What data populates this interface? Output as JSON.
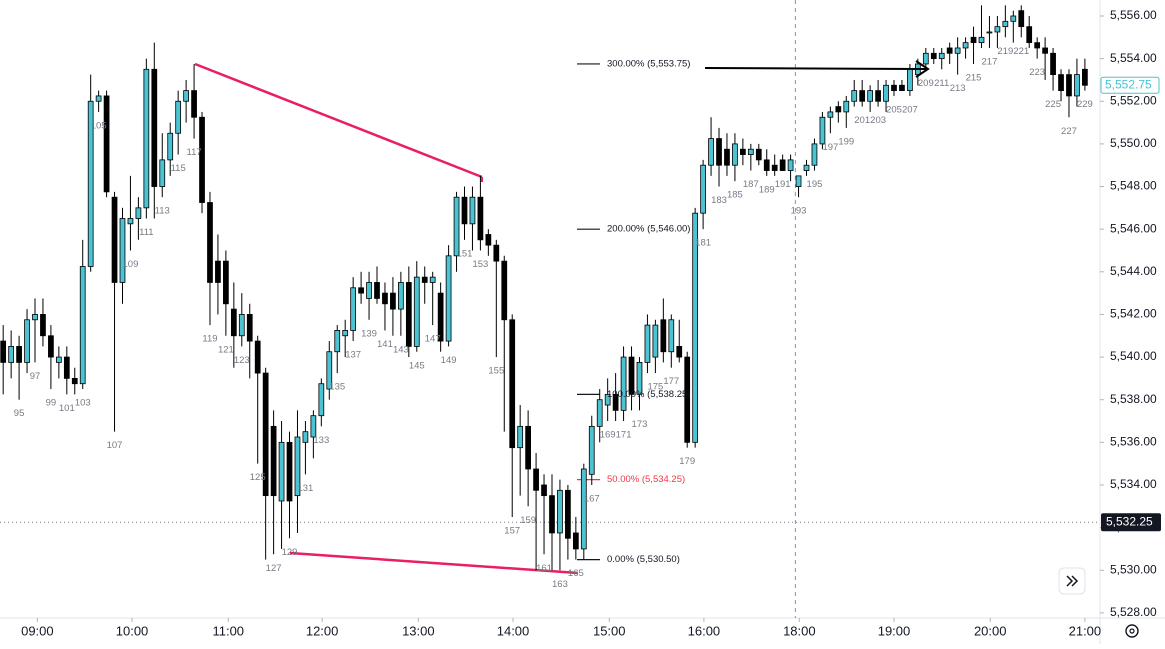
{
  "chart_data": {
    "type": "candlestick",
    "up_color": "#4cc3d2",
    "down_color": "#000000",
    "xlim": [
      92.6,
      230.9
    ],
    "ylim": [
      5527.76,
      5556.75
    ],
    "yticks": [
      {
        "value": 5528,
        "label": "5,528.00"
      },
      {
        "value": 5530,
        "label": "5,530.00"
      },
      {
        "value": 5532,
        "label": "5,532.00"
      },
      {
        "value": 5534,
        "label": "5,534.00"
      },
      {
        "value": 5536,
        "label": "5,536.00"
      },
      {
        "value": 5538,
        "label": "5,538.00"
      },
      {
        "value": 5540,
        "label": "5,540.00"
      },
      {
        "value": 5542,
        "label": "5,542.00"
      },
      {
        "value": 5544,
        "label": "5,544.00"
      },
      {
        "value": 5546,
        "label": "5,546.00"
      },
      {
        "value": 5548,
        "label": "5,548.00"
      },
      {
        "value": 5550,
        "label": "5,550.00"
      },
      {
        "value": 5552,
        "label": "5,552.00"
      },
      {
        "value": 5554,
        "label": "5,554.00"
      },
      {
        "value": 5556,
        "label": "5,556.00"
      }
    ],
    "xticks": [
      {
        "value": 97.3,
        "label": "09:00"
      },
      {
        "value": 109.2,
        "label": "10:00"
      },
      {
        "value": 121.3,
        "label": "11:00"
      },
      {
        "value": 133.1,
        "label": "12:00"
      },
      {
        "value": 145.2,
        "label": "13:00"
      },
      {
        "value": 157.1,
        "label": "14:00"
      },
      {
        "value": 169.2,
        "label": "15:00"
      },
      {
        "value": 181.1,
        "label": "16:00"
      },
      {
        "value": 193.1,
        "label": "18:00"
      },
      {
        "value": 205,
        "label": "19:00"
      },
      {
        "value": 217.1,
        "label": "20:00"
      },
      {
        "value": 229,
        "label": "21:00"
      }
    ],
    "x": [
      93,
      94,
      95,
      96,
      97,
      98,
      99,
      100,
      101,
      102,
      103,
      104,
      105,
      106,
      107,
      108,
      109,
      110,
      111,
      112,
      113,
      114,
      115,
      116,
      117,
      118,
      119,
      120,
      121,
      122,
      123,
      124,
      125,
      126,
      127,
      128,
      129,
      130,
      131,
      132,
      133,
      134,
      135,
      136,
      137,
      138,
      139,
      140,
      141,
      142,
      143,
      144,
      145,
      146,
      147,
      148,
      149,
      150,
      151,
      152,
      153,
      154,
      155,
      156,
      157,
      158,
      159,
      160,
      161,
      162,
      163,
      164,
      165,
      166,
      167,
      168,
      169,
      170,
      171,
      172,
      173,
      174,
      175,
      176,
      177,
      178,
      179,
      180,
      181,
      182,
      183,
      184,
      185,
      186,
      187,
      188,
      189,
      190,
      191,
      192,
      193,
      194,
      195,
      196,
      197,
      198,
      199,
      200,
      201,
      202,
      203,
      204,
      205,
      206,
      207,
      208,
      209,
      210,
      211,
      212,
      213,
      214,
      215,
      216,
      217,
      218,
      219,
      220,
      221,
      222,
      223,
      224,
      225,
      226,
      227,
      228,
      229
    ],
    "ohlc": [
      [
        5540.75,
        5541.5,
        5538.25,
        5539.75
      ],
      [
        5539.75,
        5541.25,
        5539,
        5540.5
      ],
      [
        5540.5,
        5541,
        5538,
        5539.75
      ],
      [
        5539.75,
        5542.25,
        5539.25,
        5541.75
      ],
      [
        5541.75,
        5542.75,
        5539.75,
        5542
      ],
      [
        5542,
        5542.75,
        5540.5,
        5541
      ],
      [
        5541,
        5541.5,
        5538.5,
        5540
      ],
      [
        5539.75,
        5540.5,
        5539,
        5540
      ],
      [
        5540,
        5540.5,
        5538.25,
        5539
      ],
      [
        5539,
        5539.5,
        5538.25,
        5538.75
      ],
      [
        5538.75,
        5545.5,
        5538.5,
        5544.25
      ],
      [
        5544.25,
        5553.25,
        5544,
        5552
      ],
      [
        5552,
        5552.5,
        5551.5,
        5552.25
      ],
      [
        5552.25,
        5552.5,
        5547.5,
        5547.75
      ],
      [
        5547.5,
        5547.75,
        5536.5,
        5543.5
      ],
      [
        5543.5,
        5547,
        5542.5,
        5546.5
      ],
      [
        5546.25,
        5548.5,
        5545,
        5546.5
      ],
      [
        5546.5,
        5547.5,
        5545.5,
        5547
      ],
      [
        5547,
        5554,
        5546.5,
        5553.5
      ],
      [
        5553.5,
        5554.75,
        5546.5,
        5548
      ],
      [
        5548,
        5550.5,
        5547.5,
        5549.25
      ],
      [
        5549.25,
        5551,
        5548.5,
        5550.5
      ],
      [
        5550.5,
        5552.5,
        5549.5,
        5552
      ],
      [
        5552,
        5553,
        5551,
        5552.5
      ],
      [
        5552.5,
        5553.75,
        5550.25,
        5551.25
      ],
      [
        5551.25,
        5551.5,
        5546.75,
        5547.25
      ],
      [
        5547.25,
        5547.75,
        5541.5,
        5543.5
      ],
      [
        5544.5,
        5545.75,
        5542,
        5543.5
      ],
      [
        5544.5,
        5545,
        5541,
        5542.5
      ],
      [
        5542.25,
        5543.5,
        5539.5,
        5541
      ],
      [
        5541,
        5543,
        5540.5,
        5542
      ],
      [
        5542,
        5542.5,
        5539,
        5540.75
      ],
      [
        5540.75,
        5541,
        5535,
        5539.25
      ],
      [
        5539.25,
        5539.5,
        5530.5,
        5533.5
      ],
      [
        5536.75,
        5537.5,
        5530.75,
        5533.5
      ],
      [
        5533.25,
        5537,
        5531,
        5536
      ],
      [
        5536,
        5536.5,
        5531.5,
        5533.25
      ],
      [
        5533.5,
        5537.5,
        5531.75,
        5536.25
      ],
      [
        5536,
        5537,
        5534.5,
        5536.5
      ],
      [
        5536.25,
        5537.5,
        5535.25,
        5537.25
      ],
      [
        5537.25,
        5539,
        5536.75,
        5538.75
      ],
      [
        5538.5,
        5540.75,
        5538,
        5540.25
      ],
      [
        5540.25,
        5541.5,
        5539.25,
        5541.25
      ],
      [
        5541,
        5541.75,
        5540,
        5541.25
      ],
      [
        5541.25,
        5543.75,
        5540.75,
        5543.25
      ],
      [
        5543.25,
        5544,
        5542.5,
        5543
      ],
      [
        5542.75,
        5544,
        5541.75,
        5543.5
      ],
      [
        5543.5,
        5544.25,
        5542.5,
        5542.75
      ],
      [
        5543,
        5543.5,
        5541.25,
        5542.5
      ],
      [
        5543,
        5543.75,
        5541,
        5542.25
      ],
      [
        5542.25,
        5544,
        5541,
        5543.5
      ],
      [
        5543.5,
        5544.25,
        5540,
        5540.5
      ],
      [
        5540.5,
        5544.5,
        5540.25,
        5543.75
      ],
      [
        5543.75,
        5544.25,
        5542.5,
        5543.5
      ],
      [
        5543.5,
        5544,
        5541.5,
        5543.75
      ],
      [
        5543,
        5543.5,
        5540.25,
        5540.75
      ],
      [
        5540.75,
        5545.25,
        5540.5,
        5544.75
      ],
      [
        5544.75,
        5547.75,
        5544,
        5547.5
      ],
      [
        5547.5,
        5548,
        5545.5,
        5546.25
      ],
      [
        5546.25,
        5548,
        5545,
        5547.5
      ],
      [
        5547.5,
        5548.5,
        5545,
        5545.5
      ],
      [
        5545.75,
        5546,
        5544.75,
        5545.25
      ],
      [
        5545.25,
        5545.5,
        5540,
        5544.5
      ],
      [
        5544.5,
        5544.75,
        5536.5,
        5541.75
      ],
      [
        5541.75,
        5542,
        5532.5,
        5535.75
      ],
      [
        5535.75,
        5537.75,
        5533.5,
        5536.75
      ],
      [
        5536.75,
        5537.5,
        5533,
        5534.75
      ],
      [
        5534.75,
        5535.5,
        5530,
        5533.75
      ],
      [
        5534,
        5534.5,
        5530.75,
        5533.5
      ],
      [
        5533.5,
        5534.5,
        5530,
        5531.75
      ],
      [
        5531.75,
        5534.25,
        5530,
        5533.75
      ],
      [
        5533.75,
        5534,
        5530.5,
        5531.5
      ],
      [
        5531.75,
        5532.5,
        5530.5,
        5531
      ],
      [
        5531,
        5535,
        5530.5,
        5534.75
      ],
      [
        5534.5,
        5537.25,
        5534,
        5536.75
      ],
      [
        5536.75,
        5538.5,
        5536,
        5538
      ],
      [
        5537.75,
        5539,
        5537,
        5538.25
      ],
      [
        5538.25,
        5539.25,
        5537,
        5537.5
      ],
      [
        5537.5,
        5540.5,
        5537,
        5540
      ],
      [
        5540,
        5540.5,
        5537.5,
        5538.25
      ],
      [
        5538.25,
        5540,
        5537.5,
        5539.75
      ],
      [
        5539.75,
        5542,
        5539.25,
        5541.5
      ],
      [
        5540,
        5541.75,
        5539.25,
        5541.5
      ],
      [
        5541.75,
        5542.75,
        5539.75,
        5540.25
      ],
      [
        5540.25,
        5542,
        5539.5,
        5541.75
      ],
      [
        5540.5,
        5541.75,
        5539.75,
        5540
      ],
      [
        5540,
        5540.25,
        5535.75,
        5536
      ],
      [
        5536,
        5547,
        5535.75,
        5546.75
      ],
      [
        5546.75,
        5549.25,
        5546,
        5549
      ],
      [
        5549,
        5551.25,
        5548.5,
        5550.25
      ],
      [
        5550.25,
        5550.75,
        5548,
        5549
      ],
      [
        5549.75,
        5550.5,
        5548.5,
        5549
      ],
      [
        5549,
        5550.5,
        5548.25,
        5550
      ],
      [
        5549.75,
        5550.25,
        5549,
        5549.5
      ],
      [
        5549.5,
        5550,
        5548.75,
        5549.75
      ],
      [
        5549.75,
        5550,
        5549,
        5549.25
      ],
      [
        5549.25,
        5549.75,
        5548.5,
        5548.75
      ],
      [
        5549,
        5549.5,
        5548.5,
        5548.75
      ],
      [
        5549.25,
        5549.5,
        5548.75,
        5548.75
      ],
      [
        5548.75,
        5549.5,
        5548.25,
        5549.25
      ],
      [
        5548,
        5548.5,
        5547.5,
        5548.5
      ],
      [
        5548.75,
        5549.25,
        5548.5,
        5549
      ],
      [
        5549,
        5550.25,
        5548.75,
        5550
      ],
      [
        5550,
        5551.5,
        5549.75,
        5551.25
      ],
      [
        5551.25,
        5551.75,
        5550.5,
        5551.5
      ],
      [
        5551.75,
        5552,
        5551,
        5551.5
      ],
      [
        5551.5,
        5552.25,
        5550.75,
        5552
      ],
      [
        5552,
        5553,
        5551.75,
        5552.5
      ],
      [
        5552.5,
        5553,
        5551.75,
        5552
      ],
      [
        5552,
        5552.75,
        5551.5,
        5552.5
      ],
      [
        5552.5,
        5553,
        5551.75,
        5552
      ],
      [
        5552,
        5553,
        5551.5,
        5552.75
      ],
      [
        5552.75,
        5553,
        5552.25,
        5552.5
      ],
      [
        5552.75,
        5553,
        5552.5,
        5552.5
      ],
      [
        5552.5,
        5553.75,
        5552.25,
        5553.5
      ],
      [
        5553.25,
        5554,
        5552.75,
        5553.75
      ],
      [
        5553.75,
        5554.5,
        5553.5,
        5554.25
      ],
      [
        5554.25,
        5554.5,
        5553.75,
        5554
      ],
      [
        5554,
        5554.5,
        5553.5,
        5554.25
      ],
      [
        5554.5,
        5554.75,
        5553.75,
        5554.25
      ],
      [
        5554.25,
        5555,
        5553.25,
        5554.5
      ],
      [
        5554.5,
        5555,
        5554,
        5554.75
      ],
      [
        5555,
        5555.5,
        5553.75,
        5554.75
      ],
      [
        5554.75,
        5556.5,
        5554.5,
        5555
      ],
      [
        5555.25,
        5556,
        5554.5,
        5555.25
      ],
      [
        5555.25,
        5556,
        5554.5,
        5555.5
      ],
      [
        5555.5,
        5556.5,
        5555,
        5555.75
      ],
      [
        5555.75,
        5556.25,
        5554.75,
        5556
      ],
      [
        5556.25,
        5556.5,
        5555,
        5555.5
      ],
      [
        5555.5,
        5556,
        5554.5,
        5554.75
      ],
      [
        5554.75,
        5555,
        5554,
        5554.5
      ],
      [
        5554.5,
        5555,
        5553,
        5554.25
      ],
      [
        5554.25,
        5554.5,
        5552.5,
        5553.25
      ],
      [
        5553.25,
        5553.5,
        5552,
        5552.5
      ],
      [
        5553.25,
        5553.5,
        5551.25,
        5552.25
      ],
      [
        5552.25,
        5554,
        5551.75,
        5553.25
      ],
      [
        5553.5,
        5554,
        5552.5,
        5552.75
      ]
    ],
    "bar_labels": [
      95,
      97,
      99,
      101,
      103,
      105,
      107,
      109,
      111,
      113,
      115,
      117,
      119,
      121,
      123,
      125,
      127,
      129,
      131,
      133,
      135,
      137,
      139,
      141,
      143,
      145,
      147,
      149,
      151,
      153,
      155,
      157,
      159,
      161,
      163,
      165,
      167,
      169,
      171,
      173,
      175,
      177,
      179,
      181,
      183,
      185,
      187,
      189,
      191,
      193,
      195,
      197,
      199,
      201,
      203,
      205,
      207,
      209,
      211,
      213,
      215,
      217,
      219,
      221,
      223,
      225,
      227,
      229
    ],
    "fib_levels": [
      {
        "value": 5553.75,
        "label": "300.00% (5,553.75)",
        "color": "#131722"
      },
      {
        "value": 5546.0,
        "label": "200.00% (5,546.00)",
        "color": "#131722"
      },
      {
        "value": 5538.25,
        "label": "100.00% (5,538.25)",
        "color": "#131722"
      },
      {
        "value": 5534.25,
        "label": "50.00% (5,534.25)",
        "color": "#f23645"
      },
      {
        "value": 5530.5,
        "label": "0.00% (5,530.50)",
        "color": "#131722"
      }
    ],
    "last_price": {
      "value": 5552.75,
      "label": "5,552.75"
    },
    "crosshair": {
      "x": 192.6,
      "price": {
        "value": 5532.25,
        "label": "5,532.25"
      }
    }
  }
}
